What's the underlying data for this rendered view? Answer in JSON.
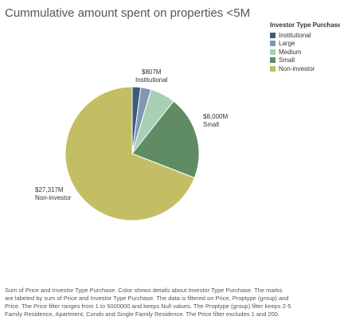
{
  "title": "Cummulative amount spent on properties <5M",
  "legend": {
    "title": "Investor Type Purchase",
    "items": [
      {
        "label": "Institutional",
        "color": "#3f5c79"
      },
      {
        "label": "Large",
        "color": "#7e98b4"
      },
      {
        "label": "Medium",
        "color": "#a8cfb4"
      },
      {
        "label": "Small",
        "color": "#5f8c62"
      },
      {
        "label": "Non-investor",
        "color": "#c3be63"
      }
    ]
  },
  "chart_data": {
    "type": "pie",
    "title": "Cummulative amount spent on properties <5M",
    "legend_position": "right",
    "slices": [
      {
        "name": "Institutional",
        "value": 807,
        "label": "$807M",
        "color": "#3f5c79"
      },
      {
        "name": "Large",
        "value": 1000,
        "label": "",
        "color": "#7e98b4"
      },
      {
        "name": "Medium",
        "value": 2400,
        "label": "",
        "color": "#a8cfb4"
      },
      {
        "name": "Small",
        "value": 8000,
        "label": "$8,000M",
        "color": "#5f8c62"
      },
      {
        "name": "Non-investor",
        "value": 27317,
        "label": "$27,317M",
        "color": "#c3be63"
      }
    ]
  },
  "caption": "Sum of Price and Investor Type Purchase.  Color shows details about Investor Type Purchase. The marks are labeled by sum of Price and Investor Type Purchase. The data is filtered on Price, Proptype (group) and Price. The Price filter ranges from 1 to 5000000 and keeps Null values. The Proptype (group) filter keeps 2-5 Family Residence, Apartment, Condo and Single Family Residence. The Price filter excludes 1 and 200."
}
